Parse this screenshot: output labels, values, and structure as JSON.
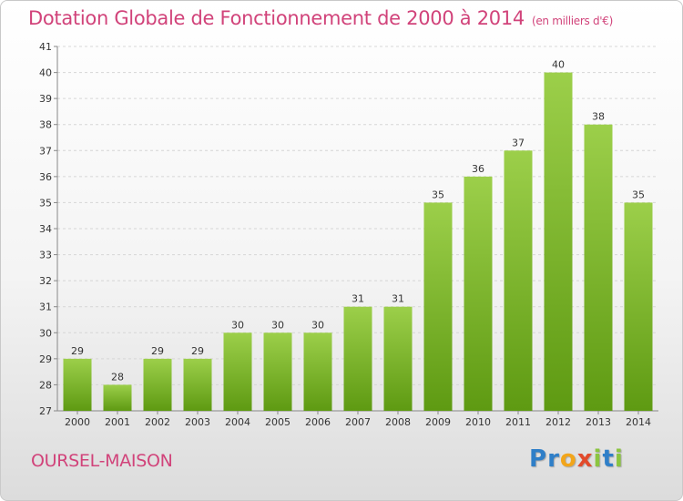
{
  "header": {
    "title": "Dotation Globale de Fonctionnement de 2000 à 2014",
    "subtitle": "(en milliers d'€)"
  },
  "footer": {
    "commune": "OURSEL-MAISON",
    "logo": "Proxiti"
  },
  "colors": {
    "title": "#d1437a",
    "bar_top": "#9ccf4a",
    "bar_bottom": "#5e9a12",
    "grid": "#d6d6d6"
  },
  "chart_data": {
    "type": "bar",
    "categories": [
      "2000",
      "2001",
      "2002",
      "2003",
      "2004",
      "2005",
      "2006",
      "2007",
      "2008",
      "2009",
      "2010",
      "2011",
      "2012",
      "2013",
      "2014"
    ],
    "values": [
      29,
      28,
      29,
      29,
      30,
      30,
      30,
      31,
      31,
      35,
      36,
      37,
      40,
      38,
      35
    ],
    "data_labels": [
      "29",
      "28",
      "29",
      "29",
      "30",
      "30",
      "30",
      "31",
      "31",
      "35",
      "36",
      "37",
      "40",
      "38",
      "35"
    ],
    "ylim": [
      27,
      41
    ],
    "yticks": [
      27,
      28,
      29,
      30,
      31,
      32,
      33,
      34,
      35,
      36,
      37,
      38,
      39,
      40,
      41
    ],
    "grid": true,
    "xlabel": "",
    "ylabel": ""
  }
}
